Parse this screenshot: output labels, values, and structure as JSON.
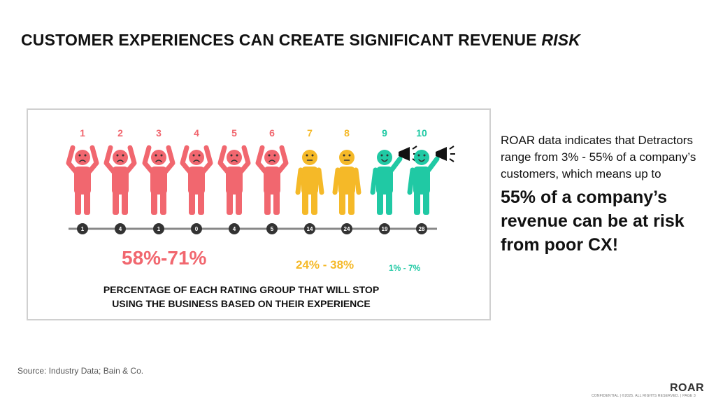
{
  "slide": {
    "title_main": "CUSTOMER EXPERIENCES CAN CREATE SIGNIFICANT REVENUE ",
    "title_emph": "RISK"
  },
  "colors": {
    "detractor": "#f1676f",
    "passive": "#f5b928",
    "promoter": "#20c9a4",
    "line": "#888888",
    "node": "#333333"
  },
  "ratings": [
    {
      "score": "1",
      "count": "1",
      "group": "detractor",
      "face": "sad"
    },
    {
      "score": "2",
      "count": "4",
      "group": "detractor",
      "face": "sad"
    },
    {
      "score": "3",
      "count": "1",
      "group": "detractor",
      "face": "sad"
    },
    {
      "score": "4",
      "count": "0",
      "group": "detractor",
      "face": "sad"
    },
    {
      "score": "5",
      "count": "4",
      "group": "detractor",
      "face": "sad"
    },
    {
      "score": "6",
      "count": "5",
      "group": "detractor",
      "face": "sad"
    },
    {
      "score": "7",
      "count": "14",
      "group": "passive",
      "face": "neutral"
    },
    {
      "score": "8",
      "count": "24",
      "group": "passive",
      "face": "neutral"
    },
    {
      "score": "9",
      "count": "19",
      "group": "promoter",
      "face": "happy"
    },
    {
      "score": "10",
      "count": "28",
      "group": "promoter",
      "face": "happy"
    }
  ],
  "groups": {
    "detractor_pct": "58%-71%",
    "passive_pct": "24% - 38%",
    "promoter_pct": "1% - 7%"
  },
  "caption": {
    "line1": "PERCENTAGE OF EACH RATING GROUP THAT WILL STOP",
    "line2": "USING THE BUSINESS BASED ON THEIR EXPERIENCE"
  },
  "side": {
    "normal": "ROAR data indicates that Detractors range from 3% - 55% of a company’s customers, which means up to",
    "big": "55% of a company’s revenue can be at risk from poor CX!"
  },
  "source": "Source: Industry Data; Bain & Co.",
  "logo": "ROAR",
  "footer": "CONFIDENTIAL | ©2025. ALL RIGHTS RESERVED. | PAGE 3"
}
